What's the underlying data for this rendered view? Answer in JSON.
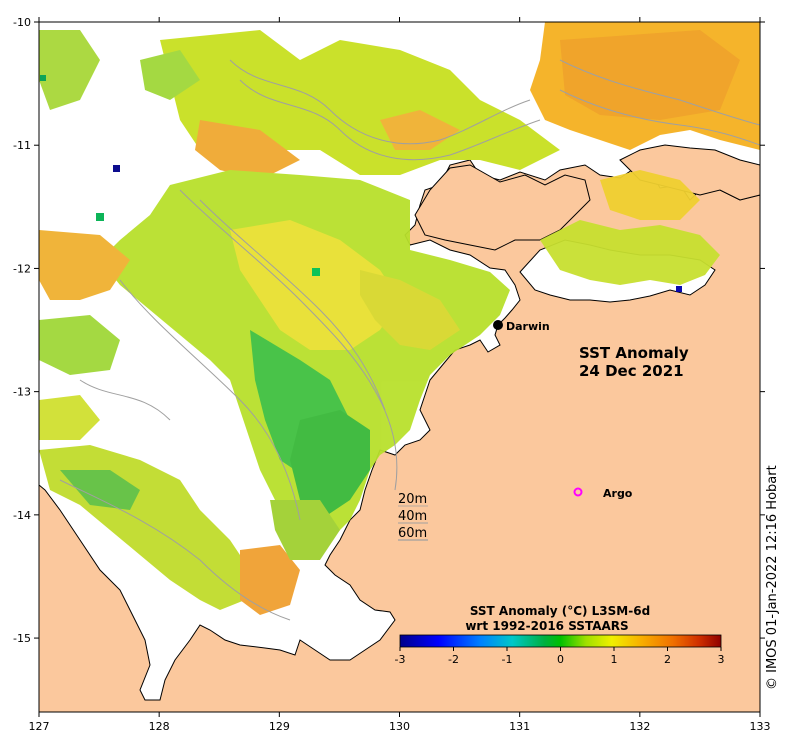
{
  "map": {
    "title_line1": "SST Anomaly",
    "title_line2": "24 Dec 2021",
    "place_darwin": "Darwin",
    "place_argo": "Argo",
    "depth_labels": [
      "20m",
      "40m",
      "60m"
    ],
    "copyright": "© IMOS 01-Jan-2022 12:16 Hobart",
    "x_ticks": [
      "127",
      "128",
      "129",
      "130",
      "131",
      "132",
      "133"
    ],
    "y_ticks": [
      "-10",
      "-11",
      "-12",
      "-13",
      "-14",
      "-15"
    ],
    "lon_range": [
      127,
      133
    ],
    "lat_range": [
      -15.6,
      -10
    ]
  },
  "colorbar": {
    "title_line1": "SST Anomaly (°C) L3SM-6d",
    "title_line2": "wrt 1992-2016 SSTAARS",
    "ticks": [
      "-3",
      "-2",
      "-1",
      "0",
      "1",
      "2",
      "3"
    ],
    "range": [
      -3,
      3
    ]
  },
  "colors": {
    "land": "#fbc89d",
    "coast": "#000000",
    "isobath": "#a0a0a0",
    "darwin_marker": "#000000",
    "argo_marker": "#ff00ff"
  }
}
